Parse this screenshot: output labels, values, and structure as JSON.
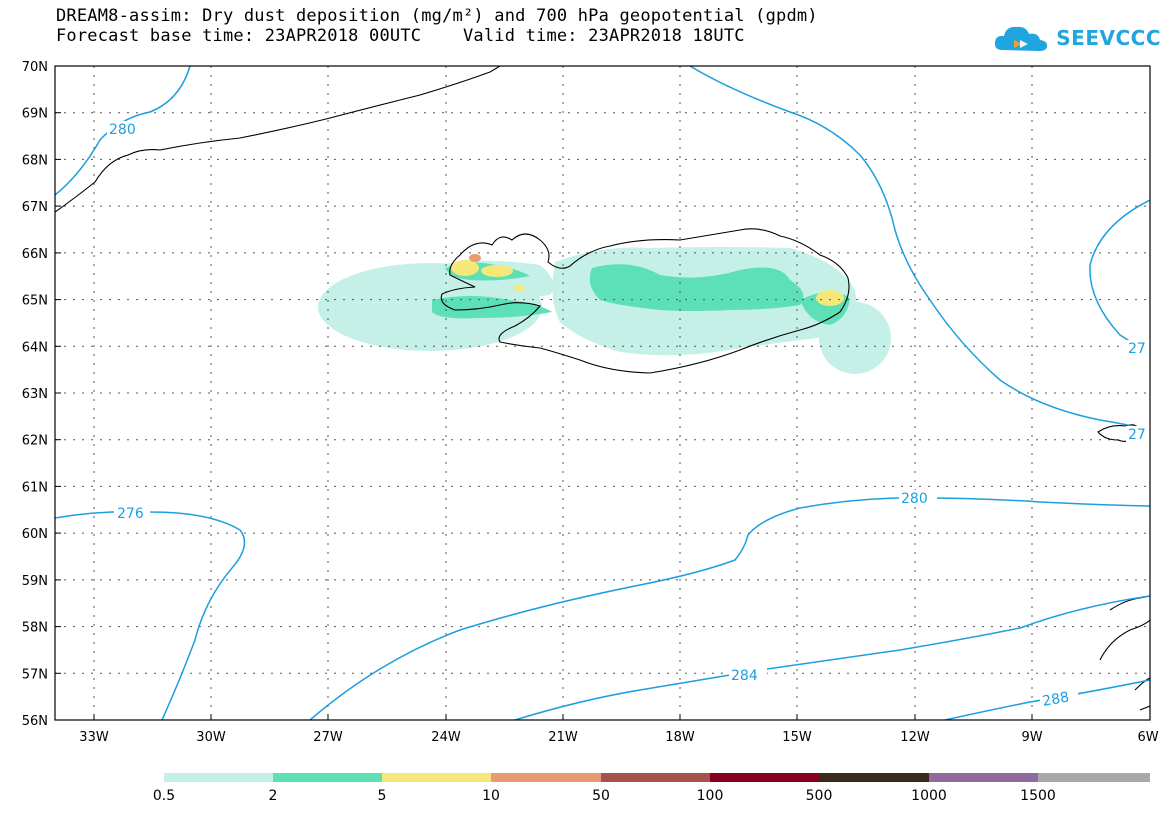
{
  "header": {
    "title_line1": "DREAM8-assim: Dry dust deposition (mg/m²) and 700 hPa geopotential (gpdm)",
    "title_line2": "Forecast base time: 23APR2018 00UTC    Valid time: 23APR2018 18UTC"
  },
  "logo": {
    "text": "SEEVCCC",
    "icon": "cloud-icon",
    "color": "#1fa5e0"
  },
  "map": {
    "lat_labels": [
      "70N",
      "69N",
      "68N",
      "67N",
      "66N",
      "65N",
      "64N",
      "63N",
      "62N",
      "61N",
      "60N",
      "59N",
      "58N",
      "57N",
      "56N"
    ],
    "lon_labels": [
      "33W",
      "30W",
      "27W",
      "24W",
      "21W",
      "18W",
      "15W",
      "12W",
      "9W",
      "6W"
    ],
    "contour_color": "#1d9ee0",
    "contour_labels": [
      "280",
      "276",
      "280",
      "284",
      "288",
      "27",
      "27"
    ]
  },
  "legend": {
    "colors": [
      "#c4f0e8",
      "#5ee0b6",
      "#f6e878",
      "#e89a72",
      "#a6524c",
      "#860020",
      "#3a2a18",
      "#8e6a9e",
      "#a8a8a8"
    ],
    "labels": [
      "0.5",
      "2",
      "5",
      "10",
      "50",
      "100",
      "500",
      "1000",
      "1500"
    ]
  }
}
